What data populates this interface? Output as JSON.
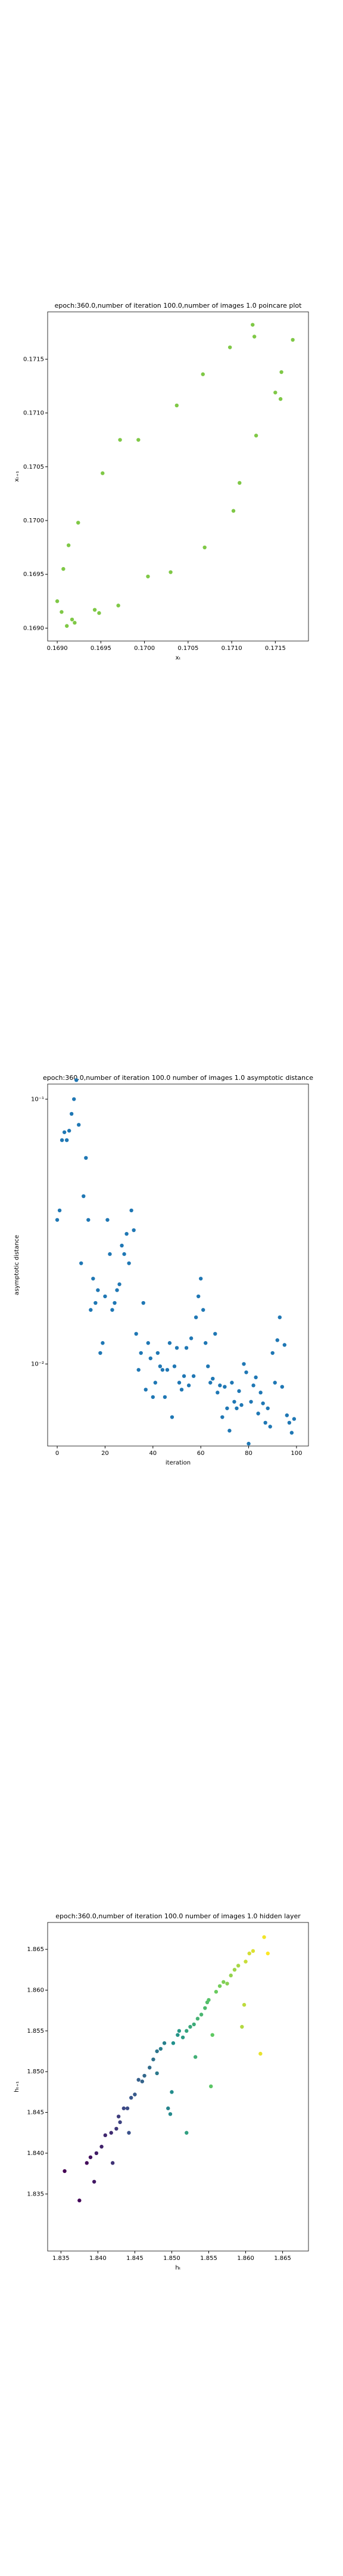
{
  "chart_data": [
    {
      "type": "scatter",
      "title": "epoch:360.0,number of iteration 100.0,number of images 1.0 poincare plot",
      "xlabel": "xₜ",
      "ylabel": "xₜ₊₁",
      "x": [
        0.169,
        0.16905,
        0.16911,
        0.16917,
        0.1692,
        0.16907,
        0.16913,
        0.16924,
        0.16943,
        0.16948,
        0.16952,
        0.1697,
        0.16972,
        0.16993,
        0.17004,
        0.1703,
        0.17037,
        0.17069,
        0.17067,
        0.17098,
        0.17102,
        0.17109,
        0.17124,
        0.17126,
        0.17128,
        0.1715,
        0.17156,
        0.17157,
        0.1717
      ],
      "y": [
        0.16925,
        0.16915,
        0.16902,
        0.16908,
        0.16905,
        0.16955,
        0.16977,
        0.16998,
        0.16917,
        0.16914,
        0.17044,
        0.16921,
        0.17075,
        0.17075,
        0.16948,
        0.16952,
        0.17107,
        0.16975,
        0.17136,
        0.17161,
        0.17009,
        0.17035,
        0.17182,
        0.17171,
        0.17079,
        0.17119,
        0.17113,
        0.17138,
        0.17168
      ],
      "color": "#7fc846",
      "xlim": [
        0.16889,
        0.17188
      ],
      "ylim": [
        0.16888,
        0.17194
      ],
      "xticks": [
        {
          "value": 0.169,
          "label": "0.1690"
        },
        0.1695,
        {
          "value": 0.17,
          "label": "0.1700"
        },
        0.1705,
        {
          "value": 0.171,
          "label": "0.1710"
        },
        0.1715
      ],
      "yticks": [
        {
          "value": 0.169,
          "label": "0.1690"
        },
        0.1695,
        {
          "value": 0.17,
          "label": "0.1700"
        },
        0.1705,
        {
          "value": 0.171,
          "label": "0.1710"
        },
        0.1715
      ]
    },
    {
      "type": "scatter",
      "title": "epoch:360.0,number of iteration 100.0  number of images 1.0 asymptotic distance",
      "xlabel": "iteration",
      "ylabel": "asymptotic distance",
      "x": [
        0,
        1,
        2,
        3,
        4,
        5,
        6,
        7,
        8,
        9,
        10,
        11,
        12,
        13,
        14,
        15,
        16,
        17,
        18,
        19,
        20,
        21,
        22,
        23,
        24,
        25,
        26,
        27,
        28,
        29,
        30,
        31,
        32,
        33,
        34,
        35,
        36,
        37,
        38,
        39,
        40,
        41,
        42,
        43,
        44,
        45,
        46,
        47,
        48,
        49,
        50,
        51,
        52,
        53,
        54,
        55,
        56,
        57,
        58,
        59,
        60,
        61,
        62,
        63,
        64,
        65,
        66,
        67,
        68,
        69,
        70,
        71,
        72,
        73,
        74,
        75,
        76,
        77,
        78,
        79,
        80,
        81,
        82,
        83,
        84,
        85,
        86,
        87,
        88,
        89,
        90,
        91,
        92,
        93,
        94,
        95,
        96,
        97,
        98,
        99
      ],
      "y": [
        0.035,
        0.038,
        0.07,
        0.075,
        0.07,
        0.076,
        0.088,
        0.1,
        0.118,
        0.08,
        0.024,
        0.043,
        0.06,
        0.035,
        0.016,
        0.021,
        0.017,
        0.019,
        0.011,
        0.012,
        0.018,
        0.035,
        0.026,
        0.016,
        0.017,
        0.019,
        0.02,
        0.028,
        0.026,
        0.031,
        0.024,
        0.038,
        0.032,
        0.013,
        0.0095,
        0.011,
        0.017,
        0.008,
        0.012,
        0.0105,
        0.0075,
        0.0085,
        0.011,
        0.0098,
        0.0095,
        0.0075,
        0.0095,
        0.012,
        0.0063,
        0.0098,
        0.0115,
        0.0085,
        0.008,
        0.009,
        0.0115,
        0.0083,
        0.0125,
        0.009,
        0.015,
        0.018,
        0.021,
        0.016,
        0.012,
        0.0098,
        0.0085,
        0.0088,
        0.013,
        0.0078,
        0.0083,
        0.0063,
        0.0082,
        0.0068,
        0.0056,
        0.0085,
        0.0072,
        0.0068,
        0.0079,
        0.007,
        0.01,
        0.0093,
        0.005,
        0.0072,
        0.0083,
        0.0089,
        0.0065,
        0.0078,
        0.0071,
        0.006,
        0.0068,
        0.0058,
        0.011,
        0.0085,
        0.0123,
        0.015,
        0.0082,
        0.0118,
        0.0064,
        0.006,
        0.0055,
        0.0062
      ],
      "color": "#1f77b4",
      "yscale": "log",
      "xlim": [
        -4,
        105
      ],
      "ylim": [
        0.0049,
        0.114
      ],
      "xticks": [
        0,
        20,
        40,
        60,
        80,
        100
      ],
      "yticks": [
        {
          "value": 0.1,
          "label": "10⁻¹"
        },
        {
          "value": 0.01,
          "label": "10⁻²"
        }
      ]
    },
    {
      "type": "scatter",
      "title": "epoch:360.0,number of iteration 100.0  number of images 1.0 hidden layer",
      "xlabel": "hₜ",
      "ylabel": "hₜ₊₁",
      "x": [
        1.8355,
        1.8375,
        1.8385,
        1.839,
        1.8395,
        1.8398,
        1.8405,
        1.841,
        1.8418,
        1.842,
        1.8425,
        1.8428,
        1.843,
        1.8435,
        1.844,
        1.8442,
        1.8445,
        1.845,
        1.8455,
        1.846,
        1.8463,
        1.847,
        1.8475,
        1.848,
        1.848,
        1.8485,
        1.849,
        1.8495,
        1.8498,
        1.85,
        1.8502,
        1.8508,
        1.851,
        1.8515,
        1.852,
        1.852,
        1.8525,
        1.853,
        1.8532,
        1.8535,
        1.854,
        1.8545,
        1.8548,
        1.855,
        1.8553,
        1.8555,
        1.856,
        1.8565,
        1.857,
        1.8575,
        1.858,
        1.8585,
        1.859,
        1.8595,
        1.8598,
        1.86,
        1.8605,
        1.861,
        1.862,
        1.8625,
        1.863
      ],
      "y": [
        1.8378,
        1.8342,
        1.8388,
        1.8395,
        1.8365,
        1.84,
        1.8408,
        1.8422,
        1.8425,
        1.8388,
        1.843,
        1.8445,
        1.8438,
        1.8455,
        1.8455,
        1.8425,
        1.8468,
        1.8472,
        1.849,
        1.8488,
        1.8495,
        1.8505,
        1.8515,
        1.8525,
        1.8498,
        1.8528,
        1.8535,
        1.8455,
        1.8448,
        1.8475,
        1.8535,
        1.8545,
        1.855,
        1.8542,
        1.8425,
        1.855,
        1.8555,
        1.8558,
        1.8518,
        1.8565,
        1.857,
        1.8578,
        1.8585,
        1.8588,
        1.8482,
        1.8545,
        1.8598,
        1.8605,
        1.861,
        1.8608,
        1.8618,
        1.8625,
        1.863,
        1.8555,
        1.8582,
        1.8635,
        1.8645,
        1.8648,
        1.8522,
        1.8665,
        1.8645
      ],
      "cmap": "viridis",
      "xlim": [
        1.8332,
        1.8685
      ],
      "ylim": [
        1.828,
        1.8683
      ],
      "xticks": [
        1.835,
        {
          "value": 1.84,
          "label": "1.840"
        },
        1.845,
        {
          "value": 1.85,
          "label": "1.850"
        },
        1.855,
        {
          "value": 1.86,
          "label": "1.860"
        },
        1.865
      ],
      "yticks": [
        1.835,
        {
          "value": 1.84,
          "label": "1.840"
        },
        1.845,
        {
          "value": 1.85,
          "label": "1.850"
        },
        1.855,
        {
          "value": 1.86,
          "label": "1.860"
        },
        1.865
      ]
    }
  ]
}
